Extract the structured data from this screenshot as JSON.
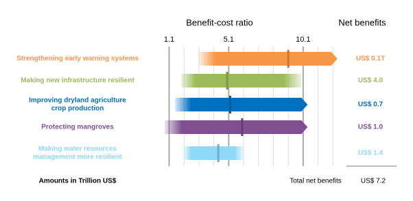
{
  "chart_data": {
    "type": "range-bar",
    "title": "Benefit-cost ratio",
    "value_header": "Net benefits",
    "xlim": [
      0.8,
      12.5
    ],
    "xticks": [
      1.1,
      5.1,
      10.1
    ],
    "minor_xticks": [
      2.1,
      3.1,
      4.1,
      6.1,
      7.1,
      8.1,
      9.1,
      11.1,
      12.1
    ],
    "grid": true,
    "series": [
      {
        "name": [
          "Strengthening early warning systems"
        ],
        "color": "#f79646",
        "low": 3.1,
        "high": 12.4,
        "mid": 9.1,
        "arrow": true,
        "net_benefit": "US$ 0.1T"
      },
      {
        "name": [
          "Making new infrastructure resilient"
        ],
        "color": "#9bbb59",
        "low": 1.9,
        "high": 10.0,
        "mid": 5.0,
        "arrow": false,
        "net_benefit": "US$ 4.0"
      },
      {
        "name": [
          "Improving dryland agriculture",
          "crop production"
        ],
        "color": "#0070c0",
        "low": 1.5,
        "high": 10.4,
        "mid": 5.2,
        "arrow": true,
        "net_benefit": "US$ 0.7"
      },
      {
        "name": [
          "Protecting mangroves"
        ],
        "color": "#7f4f91",
        "low": 0.8,
        "high": 10.4,
        "mid": 6.0,
        "arrow": true,
        "net_benefit": "US$ 1.0"
      },
      {
        "name": [
          "Making water resources",
          "management more resilient"
        ],
        "color": "#8ed8f8",
        "low": 2.1,
        "high": 6.1,
        "mid": 4.4,
        "arrow": false,
        "net_benefit": "US$ 1.4"
      }
    ],
    "footnote": "Amounts in Trillion US$",
    "total_label": "Total net benefits",
    "total_value": "US$ 7.2"
  }
}
